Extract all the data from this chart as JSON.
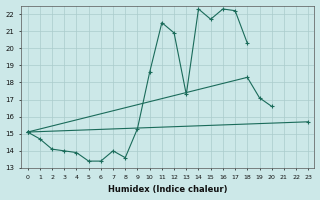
{
  "xlabel": "Humidex (Indice chaleur)",
  "background_color": "#cce8e8",
  "grid_color": "#aacccc",
  "line_color": "#1a6b5a",
  "ylim": [
    13,
    22.5
  ],
  "xlim": [
    -0.5,
    23.5
  ],
  "line1_x": [
    0,
    1,
    2,
    3,
    4,
    5,
    6,
    7,
    8,
    9,
    10,
    11,
    12,
    13,
    14,
    15,
    16,
    17,
    18
  ],
  "line1_y": [
    15.1,
    14.7,
    14.1,
    14.0,
    13.9,
    13.4,
    13.4,
    14.0,
    13.6,
    15.3,
    18.6,
    21.5,
    20.9,
    17.3,
    22.3,
    21.7,
    22.3,
    22.2,
    20.3
  ],
  "line2_x": [
    0,
    18,
    19,
    20
  ],
  "line2_y": [
    15.1,
    18.3,
    17.1,
    16.6
  ],
  "line3_x": [
    0,
    23
  ],
  "line3_y": [
    15.1,
    15.7
  ],
  "yticks": [
    13,
    14,
    15,
    16,
    17,
    18,
    19,
    20,
    21,
    22
  ],
  "xticks": [
    0,
    1,
    2,
    3,
    4,
    5,
    6,
    7,
    8,
    9,
    10,
    11,
    12,
    13,
    14,
    15,
    16,
    17,
    18,
    19,
    20,
    21,
    22,
    23
  ]
}
